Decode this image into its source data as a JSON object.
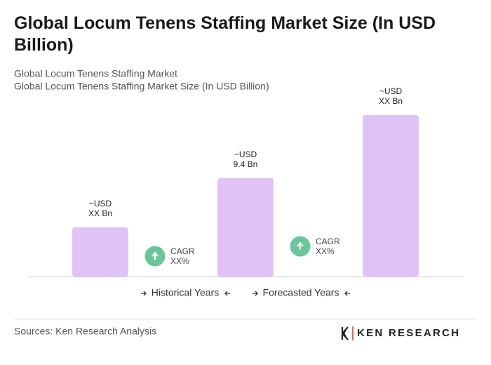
{
  "chart_data": {
    "type": "bar",
    "title": "Global Locum Tenens Staffing Market Size (In USD Billion)",
    "subtitle": [
      "Global Locum Tenens Staffing Market",
      "Global Locum Tenens Staffing Market Size (In USD Billion)"
    ],
    "categories": [
      null,
      null,
      null
    ],
    "values": [
      4.7,
      9.4,
      15.4
    ],
    "value_labels": [
      [
        "~USD",
        "XX Bn"
      ],
      [
        "~USD",
        "9.4 Bn"
      ],
      [
        "~USD",
        "XX Bn"
      ]
    ],
    "color": "#dfc3f6",
    "annotations": [
      [
        "CAGR",
        "XX%"
      ],
      [
        "CAGR",
        "XX%"
      ]
    ],
    "periods": [
      "Historical Years",
      "Forecasted Years"
    ],
    "source": "Sources: Ken Research Analysis",
    "brand": "KEN RESEARCH"
  }
}
